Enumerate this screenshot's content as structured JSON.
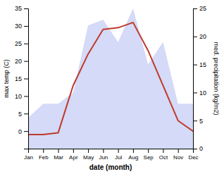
{
  "chart_data": {
    "type": "line",
    "categories": [
      "Jan",
      "Feb",
      "Mar",
      "Apr",
      "May",
      "Jun",
      "Jul",
      "Aug",
      "Sep",
      "Oct",
      "Nov",
      "Dec"
    ],
    "xlabel": "date (month)",
    "ylabel": "max temp (C)",
    "y2label": "med. precipitation (kg/m2)",
    "ylim": [
      -5,
      35
    ],
    "yticks": [
      0,
      5,
      10,
      15,
      20,
      25,
      30,
      35
    ],
    "y2lim": [
      0,
      25
    ],
    "y2ticks": [
      0,
      5,
      10,
      15,
      20,
      25
    ],
    "series": [
      {
        "type": "area",
        "axis": "y2",
        "color": "#b0bcf0",
        "values": [
          5.5,
          8,
          8,
          10,
          22,
          23,
          19,
          25,
          15,
          19,
          8,
          8
        ]
      },
      {
        "type": "line",
        "color": "#c0392b",
        "values": [
          -1,
          -1,
          -0.5,
          13,
          22,
          29,
          29.5,
          31,
          23,
          13,
          3,
          0
        ]
      }
    ]
  }
}
